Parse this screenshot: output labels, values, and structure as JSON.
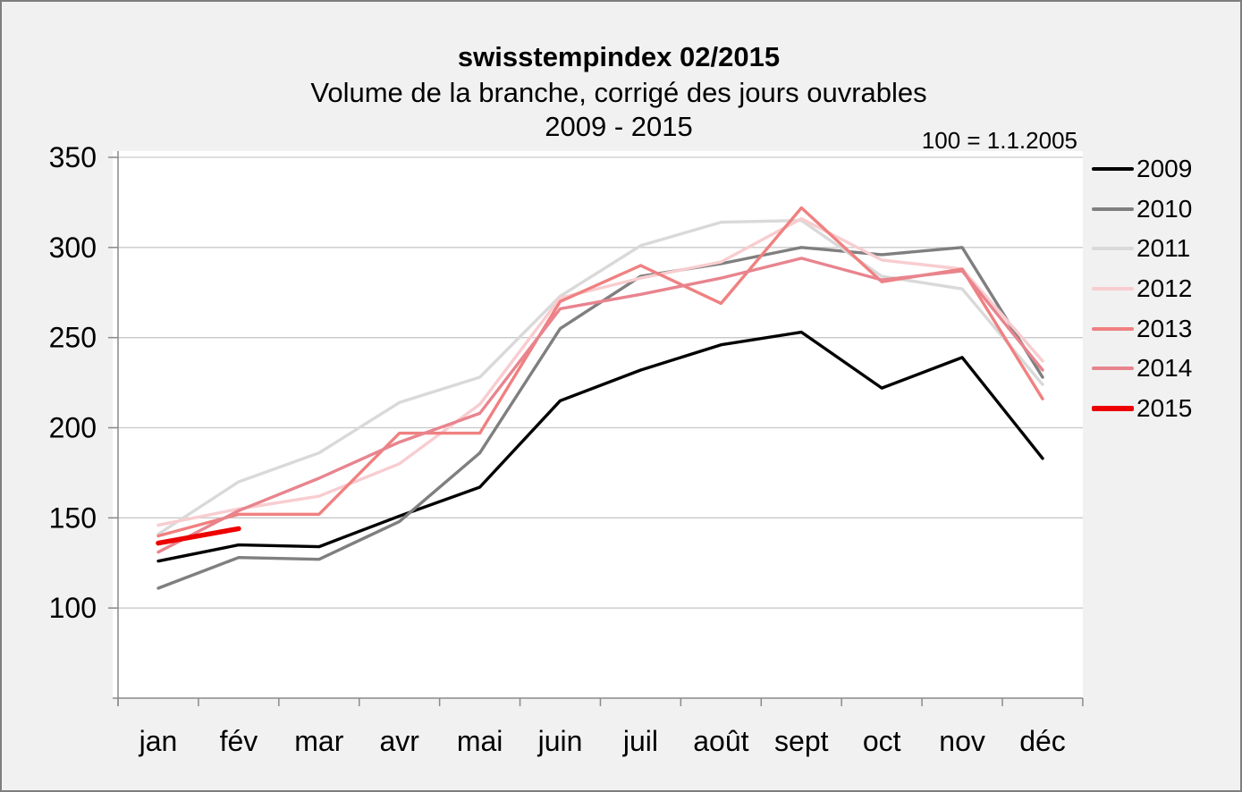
{
  "window": {
    "background": "#f1f1f1",
    "border_color": "#7e7e7e",
    "plot_background": "#ffffff",
    "gridline_color": "#c9c9c9",
    "axis_color": "#8a8a8a"
  },
  "header": {
    "title": "swisstempindex 02/2015",
    "subtitle": "Volume de la branche, corrigé des jours ouvrables",
    "period": "2009 - 2015",
    "base_note": "100 = 1.1.2005"
  },
  "chart_data": {
    "type": "line",
    "title": "swisstempindex 02/2015",
    "subtitle": "Volume de la branche, corrigé des jours ouvrables 2009 - 2015",
    "annotation": "100 = 1.1.2005",
    "categories": [
      "jan",
      "fév",
      "mar",
      "avr",
      "mai",
      "juin",
      "juil",
      "août",
      "sept",
      "oct",
      "nov",
      "déc"
    ],
    "y_ticks": [
      350,
      300,
      250,
      200,
      150,
      100
    ],
    "ylim": [
      50,
      350
    ],
    "grid": true,
    "legend_position": "right",
    "series": [
      {
        "name": "2009",
        "color": "#000000",
        "width": 3.4,
        "values": [
          126,
          135,
          134,
          151,
          167,
          215,
          232,
          246,
          253,
          222,
          239,
          183
        ]
      },
      {
        "name": "2010",
        "color": "#7f7f7f",
        "width": 3.4,
        "values": [
          111,
          128,
          127,
          148,
          186,
          255,
          284,
          291,
          300,
          296,
          300,
          228
        ]
      },
      {
        "name": "2011",
        "color": "#d9d9d9",
        "width": 3.4,
        "values": [
          141,
          170,
          186,
          214,
          228,
          273,
          301,
          314,
          315,
          284,
          277,
          224
        ]
      },
      {
        "name": "2012",
        "color": "#f8cdd0",
        "width": 3.4,
        "values": [
          146,
          155,
          162,
          180,
          213,
          272,
          283,
          292,
          316,
          293,
          288,
          237
        ]
      },
      {
        "name": "2013",
        "color": "#f08080",
        "width": 3.4,
        "values": [
          140,
          152,
          152,
          197,
          197,
          270,
          290,
          269,
          322,
          281,
          288,
          216
        ]
      },
      {
        "name": "2014",
        "color": "#e8848e",
        "width": 3.4,
        "values": [
          131,
          154,
          172,
          192,
          208,
          266,
          274,
          283,
          294,
          282,
          287,
          232
        ]
      },
      {
        "name": "2015",
        "color": "#ec0000",
        "width": 5.5,
        "values": [
          136,
          144
        ]
      }
    ]
  }
}
